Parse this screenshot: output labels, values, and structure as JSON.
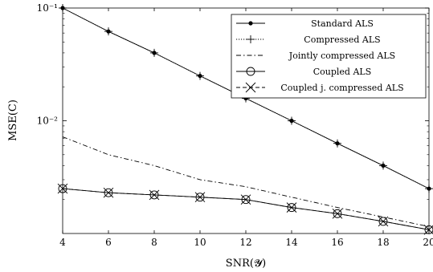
{
  "chart_data": {
    "type": "line",
    "xlabel": "SNR(𝓨)",
    "ylabel": "MSE(C)",
    "y_scale": "log",
    "xlim": [
      4,
      20
    ],
    "ylim": [
      0.001,
      0.1
    ],
    "grid": false,
    "legend_position": "top-right",
    "x_ticks": [
      4,
      6,
      8,
      10,
      12,
      14,
      16,
      18,
      20
    ],
    "x_tick_labels": [
      "4",
      "6",
      "8",
      "10",
      "12",
      "14",
      "16",
      "18",
      "20"
    ],
    "y_ticks": [
      0.1,
      0.01
    ],
    "y_tick_labels": [
      "10⁻¹",
      "10⁻²"
    ],
    "x": [
      4,
      6,
      8,
      10,
      12,
      14,
      16,
      18,
      20
    ],
    "series": [
      {
        "name": "Standard ALS",
        "values": [
          0.1,
          0.062,
          0.04,
          0.025,
          0.0158,
          0.01,
          0.0063,
          0.004,
          0.0025
        ],
        "style": "solid",
        "marker": "dot"
      },
      {
        "name": "Compressed ALS",
        "values": [
          0.1,
          0.062,
          0.04,
          0.025,
          0.0158,
          0.01,
          0.0063,
          0.004,
          0.0025
        ],
        "style": "dotted",
        "marker": "plus"
      },
      {
        "name": "Jointly compressed ALS",
        "values": [
          0.0072,
          0.005,
          0.004,
          0.003,
          0.0026,
          0.0021,
          0.0017,
          0.0014,
          0.00115
        ],
        "style": "dashdot",
        "marker": "none"
      },
      {
        "name": "Coupled ALS",
        "values": [
          0.0025,
          0.0023,
          0.0022,
          0.0021,
          0.002,
          0.0017,
          0.0015,
          0.00128,
          0.00108
        ],
        "style": "solid",
        "marker": "circle"
      },
      {
        "name": "Coupled j. compressed ALS",
        "values": [
          0.0025,
          0.0023,
          0.0022,
          0.0021,
          0.002,
          0.0017,
          0.0015,
          0.00128,
          0.00108
        ],
        "style": "dashed",
        "marker": "x"
      }
    ]
  }
}
